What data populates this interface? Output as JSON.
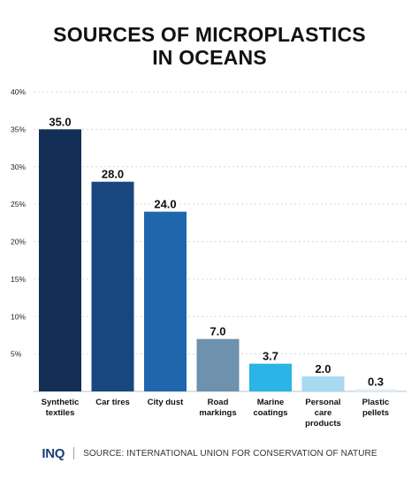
{
  "title_line1": "SOURCES OF MICROPLASTICS",
  "title_line2": "IN OCEANS",
  "chart_data": {
    "type": "bar",
    "categories": [
      [
        "Synthetic",
        "textiles"
      ],
      [
        "Car tires"
      ],
      [
        "City dust"
      ],
      [
        "Road",
        "markings"
      ],
      [
        "Marine",
        "coatings"
      ],
      [
        "Personal",
        "care",
        "products"
      ],
      [
        "Plastic",
        "pellets"
      ]
    ],
    "values": [
      35.0,
      28.0,
      24.0,
      7.0,
      3.7,
      2.0,
      0.3
    ],
    "value_labels": [
      "35.0",
      "28.0",
      "24.0",
      "7.0",
      "3.7",
      "2.0",
      "0.3"
    ],
    "bar_colors": [
      "#132f56",
      "#184780",
      "#1f66ad",
      "#6e91ad",
      "#2bb4e6",
      "#a9d8f2",
      "#e3eef6"
    ],
    "yticks": [
      "",
      "5%",
      "10%",
      "15%",
      "20%",
      "25%",
      "30%",
      "35%",
      "40%"
    ],
    "ylim": [
      0,
      40
    ],
    "grid": true,
    "legend": "none"
  },
  "footer": {
    "logo": "INQ",
    "source": "SOURCE: INTERNATIONAL UNION FOR CONSERVATION OF NATURE"
  }
}
